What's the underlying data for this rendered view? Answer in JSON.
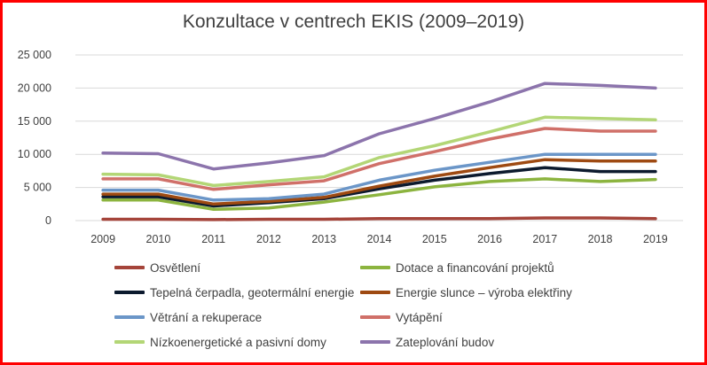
{
  "chart_data": {
    "type": "line",
    "title": "Konzultace v centrech EKIS (2009–2019)",
    "xlabel": "",
    "ylabel": "",
    "ylim": [
      0,
      25000
    ],
    "yticks": [
      0,
      5000,
      10000,
      15000,
      20000,
      25000
    ],
    "ytick_labels": [
      "0",
      "5 000",
      "10 000",
      "15 000",
      "20 000",
      "25 000"
    ],
    "grid": true,
    "legend_position": "bottom",
    "categories": [
      "2009",
      "2010",
      "2011",
      "2012",
      "2013",
      "2014",
      "2015",
      "2016",
      "2017",
      "2018",
      "2019"
    ],
    "series": [
      {
        "name": "Osvětlení",
        "color": "#a5443a",
        "values": [
          200,
          200,
          150,
          200,
          200,
          300,
          300,
          300,
          400,
          400,
          300
        ]
      },
      {
        "name": "Dotace a financování projektů",
        "color": "#8cb43f",
        "values": [
          3100,
          3100,
          1700,
          1900,
          2800,
          3900,
          5100,
          5900,
          6300,
          5900,
          6200
        ]
      },
      {
        "name": "Tepelná čerpadla, geotermální energie",
        "color": "#0c1a2e",
        "values": [
          3600,
          3600,
          2200,
          2700,
          3300,
          4800,
          6100,
          7100,
          8000,
          7400,
          7400
        ]
      },
      {
        "name": "Energie slunce – výroba elektřiny",
        "color": "#9e4a12",
        "values": [
          4000,
          4000,
          2500,
          2900,
          3500,
          5200,
          6700,
          8000,
          9200,
          9000,
          9000
        ]
      },
      {
        "name": "Větrání a rekuperace",
        "color": "#6b96c8",
        "values": [
          4600,
          4600,
          3100,
          3300,
          4000,
          6100,
          7600,
          8800,
          10000,
          10000,
          10000
        ]
      },
      {
        "name": "Vytápění",
        "color": "#d07069",
        "values": [
          6300,
          6300,
          4700,
          5400,
          6000,
          8600,
          10400,
          12300,
          13900,
          13500,
          13500
        ]
      },
      {
        "name": "Nízkoenergetické a pasivní domy",
        "color": "#b3d676",
        "values": [
          7000,
          6900,
          5300,
          5900,
          6600,
          9500,
          11300,
          13400,
          15600,
          15400,
          15200
        ]
      },
      {
        "name": "Zateplování budov",
        "color": "#8c74ac",
        "values": [
          10200,
          10100,
          7800,
          8700,
          9800,
          13100,
          15400,
          17900,
          20700,
          20400,
          20000
        ]
      }
    ]
  }
}
